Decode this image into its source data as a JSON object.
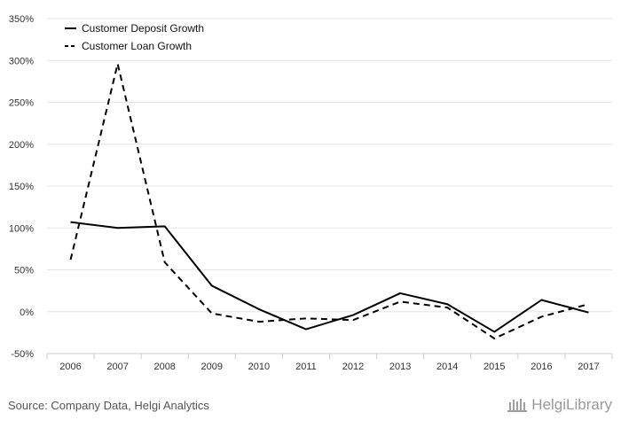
{
  "chart_data": {
    "type": "line",
    "categories": [
      "2006",
      "2007",
      "2008",
      "2009",
      "2010",
      "2011",
      "2012",
      "2013",
      "2014",
      "2015",
      "2016",
      "2017"
    ],
    "ylim": [
      -50,
      350
    ],
    "yticks": [
      -50,
      0,
      50,
      100,
      150,
      200,
      250,
      300,
      350
    ],
    "ytick_labels": [
      "-50%",
      "0%",
      "50%",
      "100%",
      "150%",
      "200%",
      "250%",
      "300%",
      "350%"
    ],
    "series": [
      {
        "name": "Customer Deposit Growth",
        "values": [
          107,
          100,
          102,
          31,
          3,
          -21,
          -4,
          22,
          9,
          -24,
          14,
          -1
        ],
        "dash": "solid",
        "color": "#000000"
      },
      {
        "name": "Customer Loan Growth",
        "values": [
          62,
          296,
          59,
          -2,
          -12,
          -8,
          -10,
          12,
          5,
          -32,
          -6,
          9
        ],
        "dash": "dashed",
        "color": "#000000"
      }
    ],
    "legend_position": "top-left",
    "grid": true
  },
  "footer": {
    "source": "Source: Company Data, Helgi Analytics",
    "logo_text": "HelgiLibrary"
  }
}
